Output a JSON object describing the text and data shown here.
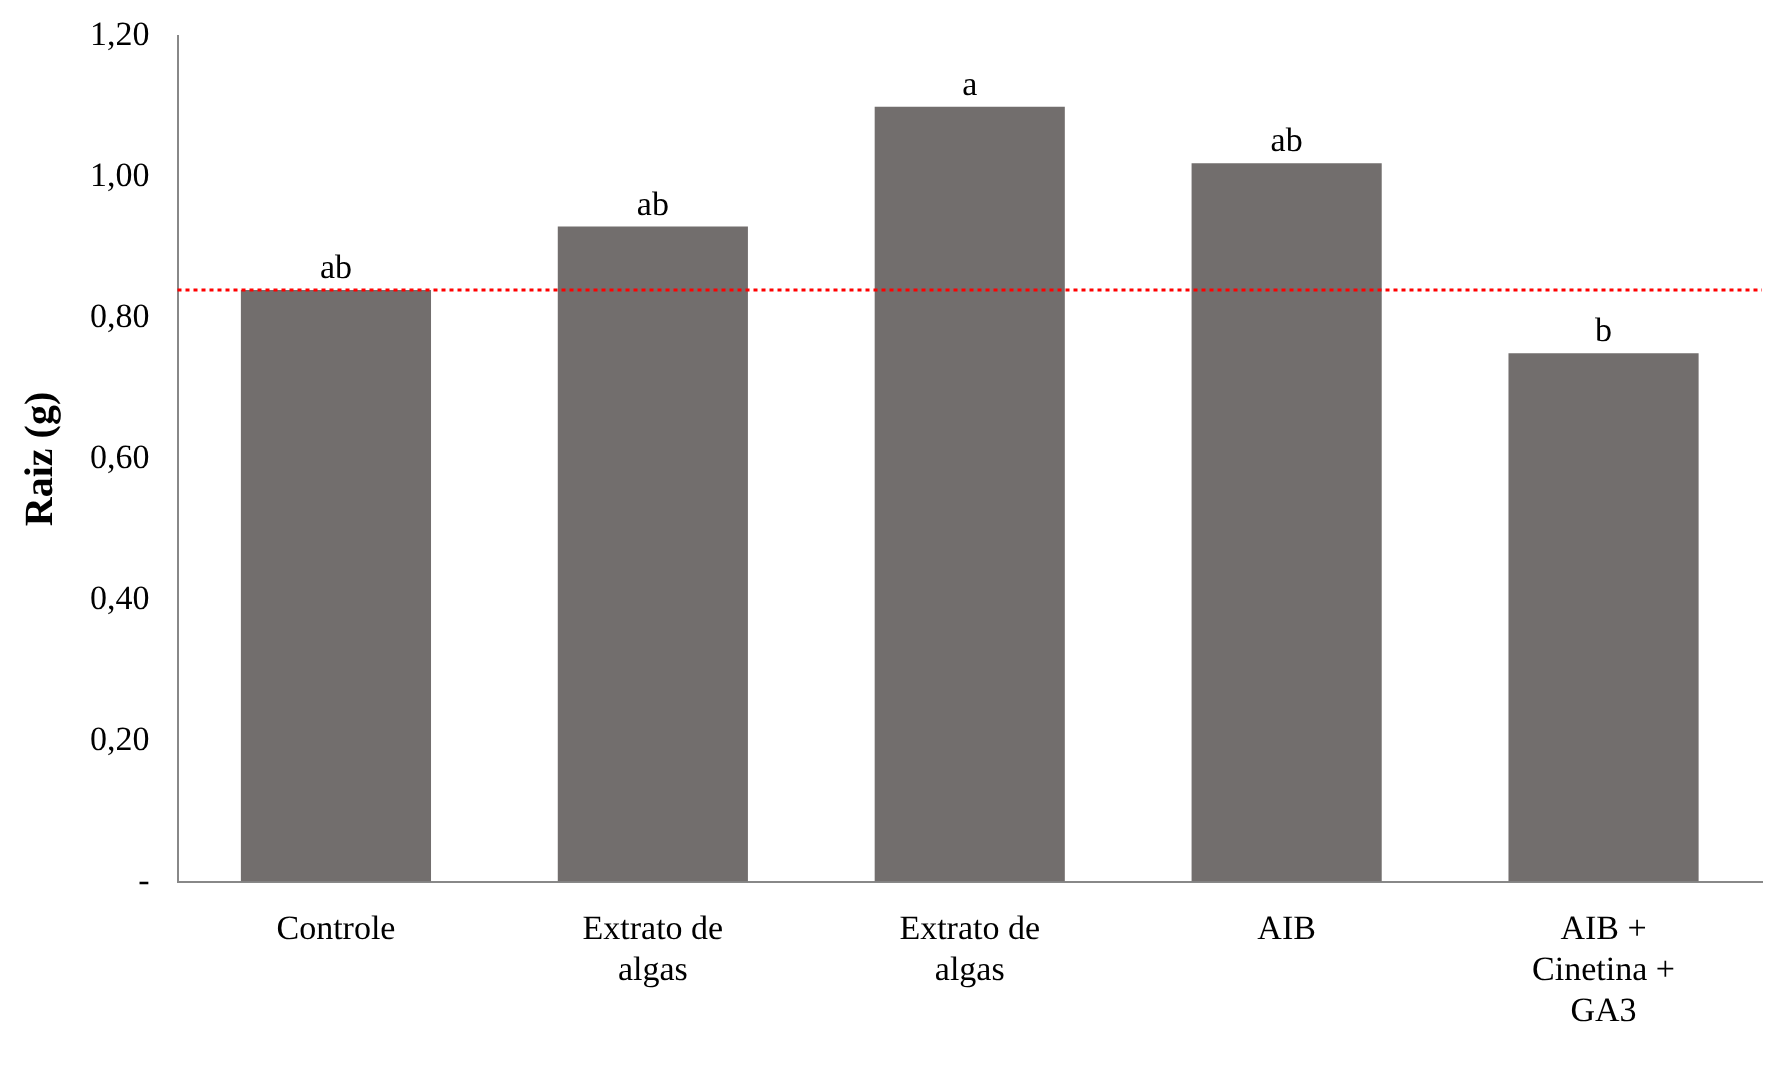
{
  "chart_data": {
    "type": "bar",
    "ylabel": "Raiz (g)",
    "categories": [
      "Controle",
      "Extrato de algas",
      "Extrato de algas",
      "AIB",
      "AIB + Cinetina + GA3"
    ],
    "values": [
      0.84,
      0.93,
      1.1,
      1.02,
      0.75
    ],
    "value_labels": [
      "ab",
      "ab",
      "a",
      "ab",
      "b"
    ],
    "color": "#726e6d",
    "ylim": [
      0,
      1.2
    ],
    "yticks": [
      {
        "value": 0,
        "label": "-"
      },
      {
        "value": 0.2,
        "label": "0,20"
      },
      {
        "value": 0.4,
        "label": "0,40"
      },
      {
        "value": 0.6,
        "label": "0,60"
      },
      {
        "value": 0.8,
        "label": "0,80"
      },
      {
        "value": 1,
        "label": "1,00"
      },
      {
        "value": 1.2,
        "label": "1,20"
      }
    ],
    "ref_lines": [
      {
        "axis": "y",
        "value": 0.84,
        "color": "#ff0000",
        "line_style": "dotted"
      }
    ],
    "grid": false,
    "legend": false
  }
}
